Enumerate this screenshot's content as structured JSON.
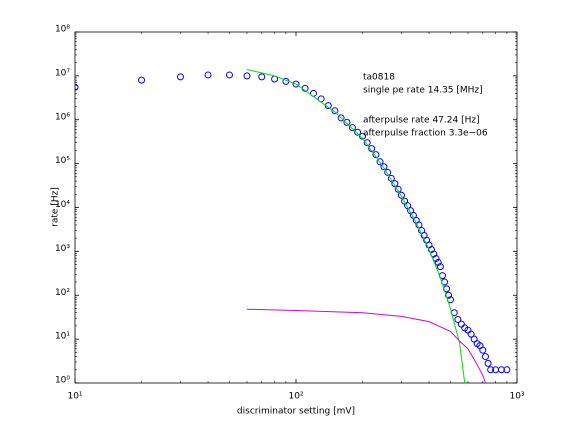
{
  "chart_data": {
    "type": "scatter",
    "xlabel": "discriminator setting [mV]",
    "ylabel": "rate [Hz]",
    "annotations": [
      "ta0818",
      "single pe rate 14.35 [MHz]",
      "afterpulse rate 47.24 [Hz]",
      "afterpulse fraction 3.3e−06"
    ],
    "xscale": "log",
    "yscale": "log",
    "xlim": [
      10,
      1000
    ],
    "ylim": [
      1,
      100000000
    ],
    "xticks": [
      {
        "value": 10,
        "label": "10¹"
      },
      {
        "value": 100,
        "label": "10²"
      },
      {
        "value": 1000,
        "label": "10³"
      }
    ],
    "yticks": [
      {
        "value": 1,
        "label": "10⁰"
      },
      {
        "value": 10,
        "label": "10¹"
      },
      {
        "value": 100,
        "label": "10²"
      },
      {
        "value": 1000,
        "label": "10³"
      },
      {
        "value": 10000,
        "label": "10⁴"
      },
      {
        "value": 100000,
        "label": "10⁵"
      },
      {
        "value": 1000000,
        "label": "10⁶"
      },
      {
        "value": 10000000,
        "label": "10⁷"
      },
      {
        "value": 100000000,
        "label": "10⁸"
      }
    ],
    "series": [
      {
        "kind": "markers",
        "color": "#0000ff",
        "x": [
          10,
          20,
          30,
          40,
          50,
          60,
          70,
          80,
          90,
          100,
          110,
          120,
          130,
          140,
          150,
          160,
          170,
          180,
          190,
          200,
          210,
          220,
          230,
          240,
          250,
          260,
          270,
          280,
          290,
          300,
          310,
          320,
          330,
          340,
          350,
          360,
          370,
          380,
          390,
          400,
          410,
          420,
          430,
          440,
          450,
          460,
          470,
          480,
          490,
          500,
          520,
          540,
          560,
          580,
          600,
          620,
          640,
          660,
          680,
          700,
          720,
          740,
          760,
          800,
          850,
          900
        ],
        "values": [
          5500000,
          8000000,
          9500000,
          10500000,
          10500000,
          10000000,
          9500000,
          8500000,
          7500000,
          6500000,
          5200000,
          4000000,
          3000000,
          2100000,
          1600000,
          1100000,
          870000,
          660000,
          520000,
          420000,
          300000,
          220000,
          160000,
          110000,
          85000,
          63000,
          46000,
          35000,
          26000,
          19000,
          14000,
          11000,
          8500,
          6600,
          5100,
          4000,
          3000,
          2300,
          1800,
          1400,
          1100,
          870,
          690,
          560,
          450,
          280,
          200,
          140,
          100,
          79,
          40,
          28,
          22,
          18,
          16,
          13,
          10,
          7.9,
          7.1,
          5.6,
          4,
          2.8,
          2,
          2,
          2,
          2
        ]
      },
      {
        "kind": "line",
        "color": "#00dd00",
        "x": [
          60,
          80,
          100,
          150,
          200,
          250,
          300,
          350,
          400,
          450,
          500,
          550,
          580
        ],
        "values": [
          14000000,
          10000000,
          6500000,
          1500000,
          380000,
          80000,
          18000,
          4500,
          1100,
          250,
          50,
          8,
          1
        ]
      },
      {
        "kind": "line",
        "color": "#dd00dd",
        "x": [
          60,
          100,
          200,
          300,
          400,
          500,
          550,
          600,
          650,
          700,
          720
        ],
        "values": [
          48,
          45,
          40,
          33,
          25,
          15,
          9,
          6,
          3,
          1.5,
          1
        ]
      }
    ]
  }
}
